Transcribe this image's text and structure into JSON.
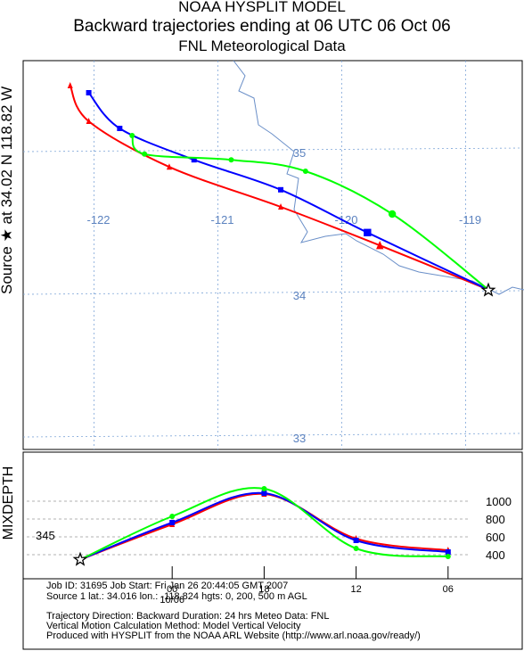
{
  "header": {
    "line1": "NOAA HYSPLIT MODEL",
    "line2": "Backward trajectories ending at 06 UTC 06 Oct 06",
    "line3": "FNL  Meteorological Data"
  },
  "side_label": "Source ★ at   34.02 N  118.82 W",
  "mix_label": "MIXDEPTH",
  "chart_data": [
    {
      "type": "line",
      "title": "Backward trajectories ending at 06 UTC 06 Oct 06",
      "lon_ticks": [
        {
          "label": "-122",
          "value": -122
        },
        {
          "label": "-121",
          "value": -121
        },
        {
          "label": "-120",
          "value": -120
        },
        {
          "label": "-119",
          "value": -119
        }
      ],
      "lat_ticks": [
        {
          "label": "35",
          "value": 35
        },
        {
          "label": "34",
          "value": 34
        },
        {
          "label": "33",
          "value": 33
        }
      ],
      "source": {
        "lat": 34.016,
        "lon": -118.824
      },
      "series": [
        {
          "color": "#ff0000",
          "marker": "triangle",
          "lon": [
            -118.824,
            -119.7,
            -120.5,
            -121.4,
            -122.05,
            -122.2
          ],
          "lat": [
            34.02,
            34.33,
            34.6,
            34.88,
            35.2,
            35.45
          ]
        },
        {
          "color": "#0000ff",
          "marker": "square",
          "lon": [
            -118.824,
            -119.8,
            -120.5,
            -121.2,
            -121.8,
            -122.05
          ],
          "lat": [
            34.02,
            34.42,
            34.72,
            34.93,
            35.15,
            35.4
          ]
        },
        {
          "color": "#00ff00",
          "marker": "circle",
          "lon": [
            -118.824,
            -119.6,
            -120.3,
            -120.9,
            -121.6,
            -121.7
          ],
          "lat": [
            34.02,
            34.55,
            34.85,
            34.93,
            34.97,
            35.1
          ]
        }
      ]
    },
    {
      "type": "line",
      "ylabel": "MIXDEPTH",
      "y_ticks": [
        {
          "label": "1000",
          "value": 1000
        },
        {
          "label": "800",
          "value": 800
        },
        {
          "label": "600",
          "value": 600
        },
        {
          "label": "400",
          "value": 400
        }
      ],
      "x_ticks": [
        {
          "label": "00",
          "value": 6
        },
        {
          "label": "18",
          "value": 12
        },
        {
          "label": "12",
          "value": 18
        },
        {
          "label": "06",
          "value": 24
        }
      ],
      "date_label": "10/06",
      "start_label": "345",
      "series": [
        {
          "color": "#ff0000",
          "marker": "triangle",
          "hours": [
            0,
            6,
            12,
            18,
            24
          ],
          "values": [
            345,
            740,
            1080,
            580,
            450
          ]
        },
        {
          "color": "#0000ff",
          "marker": "square",
          "hours": [
            0,
            6,
            12,
            18,
            24
          ],
          "values": [
            345,
            760,
            1090,
            560,
            430
          ]
        },
        {
          "color": "#00ff00",
          "marker": "circle",
          "hours": [
            0,
            6,
            12,
            18,
            24
          ],
          "values": [
            345,
            830,
            1140,
            470,
            380
          ]
        }
      ]
    }
  ],
  "footer": {
    "job_line": "Job ID: 31695          Job Start: Fri Jan 26 20:44:05 GMT 2007",
    "source_line": "Source 1 lat.: 34.016  lon.: -118.824  hgts: 0, 200, 500 m AGL",
    "direction_line": "Trajectory Direction: Backward    Duration: 24 hrs     Meteo Data: FNL",
    "vertical_line": "Vertical Motion Calculation Method: Model Vertical Velocity",
    "produced_line": "Produced with HYSPLIT from the NOAA ARL Website (http://www.arl.noaa.gov/ready/)"
  }
}
